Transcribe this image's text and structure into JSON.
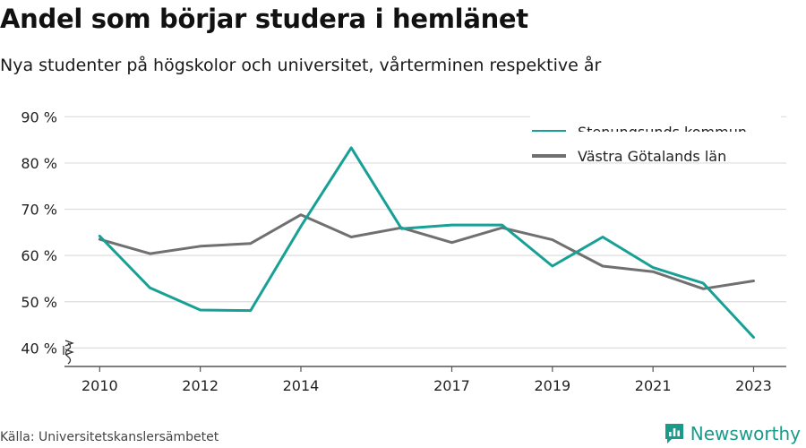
{
  "title": "Andel som börjar studera i hemlänet",
  "subtitle": "Nya studenter på högskolor och universitet, vårterminen respektive år",
  "source": "Källa: Universitetskanslersämbetet",
  "brand": "Newsworthy",
  "colors": {
    "stenungsund": "#17a095",
    "vastra_gotaland": "#707070",
    "grid": "#dddddd",
    "axis": "#555555",
    "brand": "#1a9a8a"
  },
  "chart_data": {
    "type": "line",
    "x": [
      2010,
      2011,
      2012,
      2013,
      2014,
      2015,
      2016,
      2017,
      2018,
      2019,
      2020,
      2021,
      2022,
      2023
    ],
    "x_tick_labels": [
      "2010",
      "2012",
      "2014",
      "2017",
      "2019",
      "2021",
      "2023"
    ],
    "x_tick_values": [
      2010,
      2012,
      2014,
      2017,
      2019,
      2021,
      2023
    ],
    "y_tick_labels": [
      "40 %",
      "50 %",
      "60 %",
      "70 %",
      "80 %",
      "90 %"
    ],
    "y_tick_values": [
      40,
      50,
      60,
      70,
      80,
      90
    ],
    "ylim": [
      36,
      92
    ],
    "xlim": [
      2009.3,
      2023.65
    ],
    "y_axis_break": true,
    "grid": true,
    "legend_position": "top-right",
    "series": [
      {
        "name": "Stenungsunds kommun",
        "color": "#17a095",
        "values": [
          64.2,
          53.0,
          48.2,
          48.1,
          66.3,
          83.3,
          65.8,
          66.6,
          66.6,
          57.7,
          64.0,
          57.4,
          54.0,
          42.3
        ]
      },
      {
        "name": "Västra Götalands län",
        "color": "#707070",
        "values": [
          63.5,
          60.4,
          62.0,
          62.6,
          68.8,
          64.0,
          66.0,
          62.8,
          66.0,
          63.4,
          57.7,
          56.5,
          52.8,
          54.5
        ]
      }
    ]
  }
}
